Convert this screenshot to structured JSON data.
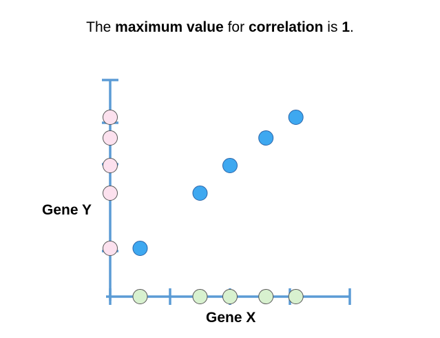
{
  "headline": {
    "prefix": "The ",
    "term_1": "maximum value",
    "middle_1": " for ",
    "term_2": "correlation",
    "middle_2": " is ",
    "value": "1",
    "suffix": "."
  },
  "axes": {
    "x_label": "Gene X",
    "y_label": "Gene Y"
  },
  "chart_data": {
    "type": "scatter",
    "title": "",
    "xlabel": "Gene X",
    "ylabel": "Gene Y",
    "xlim": [
      0,
      4
    ],
    "ylim": [
      0,
      3.1
    ],
    "x": [
      0.5,
      1.5,
      2.0,
      2.6,
      3.1
    ],
    "y": [
      0.7,
      1.5,
      1.9,
      2.3,
      2.6
    ],
    "colors": {
      "points": "#3ea8f0",
      "point_outline": "#2a64a8",
      "x_projection": "#d8f1cf",
      "y_projection": "#fce1ee",
      "axis": "#5b9bd5",
      "marker_outline": "#555555"
    }
  }
}
